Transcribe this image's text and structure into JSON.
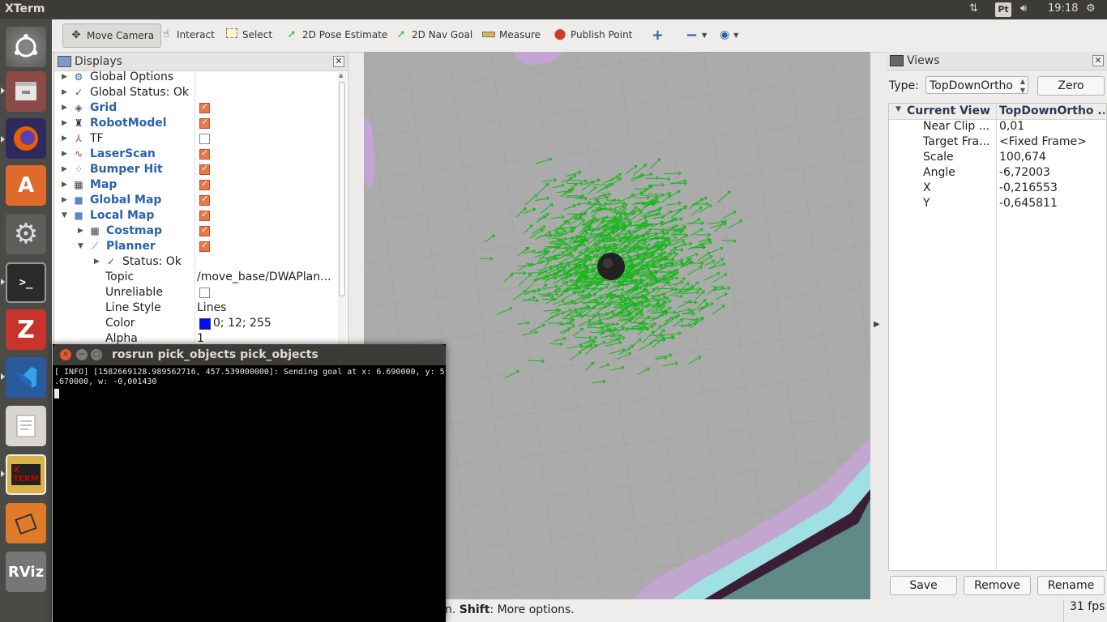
{
  "topbar": {
    "title": "XTerm",
    "keyboard_layout": "Pt",
    "time": "19:18"
  },
  "launcher": {
    "items": [
      "ubuntu-dash-icon",
      "files-icon",
      "firefox-icon",
      "software-center-icon",
      "system-settings-icon",
      "terminal-icon",
      "zotero-icon",
      "vscode-icon",
      "text-editor-icon",
      "xterm-icon",
      "blender-icon",
      "rviz-icon"
    ]
  },
  "toolbar": {
    "tools": [
      {
        "label": "Move Camera",
        "icon": "move-camera-icon"
      },
      {
        "label": "Interact",
        "icon": "hand-icon"
      },
      {
        "label": "Select",
        "icon": "select-icon"
      },
      {
        "label": "2D Pose Estimate",
        "icon": "pose-arrow-icon"
      },
      {
        "label": "2D Nav Goal",
        "icon": "nav-goal-icon"
      },
      {
        "label": "Measure",
        "icon": "ruler-icon"
      },
      {
        "label": "Publish Point",
        "icon": "pin-icon"
      }
    ]
  },
  "displays": {
    "title": "Displays",
    "rows": [
      {
        "label": "Global Options",
        "checked": null,
        "value": ""
      },
      {
        "label": "Global Status: Ok",
        "checked": null,
        "value": ""
      },
      {
        "label": "Grid",
        "checked": true,
        "value": ""
      },
      {
        "label": "RobotModel",
        "checked": true,
        "value": ""
      },
      {
        "label": "TF",
        "checked": false,
        "value": ""
      },
      {
        "label": "LaserScan",
        "checked": true,
        "value": ""
      },
      {
        "label": "Bumper Hit",
        "checked": true,
        "value": ""
      },
      {
        "label": "Map",
        "checked": true,
        "value": ""
      },
      {
        "label": "Global Map",
        "checked": true,
        "value": ""
      },
      {
        "label": "Local Map",
        "checked": true,
        "value": ""
      },
      {
        "label": "Costmap",
        "checked": true,
        "value": ""
      },
      {
        "label": "Planner",
        "checked": true,
        "value": ""
      },
      {
        "label": "Status: Ok",
        "checked": null,
        "value": ""
      },
      {
        "label": "Topic",
        "checked": null,
        "value": "/move_base/DWAPlan..."
      },
      {
        "label": "Unreliable",
        "checked": false,
        "value": ""
      },
      {
        "label": "Line Style",
        "checked": null,
        "value": "Lines"
      },
      {
        "label": "Color",
        "checked": null,
        "value": "0; 12; 255"
      },
      {
        "label": "Alpha",
        "checked": null,
        "value": "1"
      }
    ],
    "color_swatch": "#000cff"
  },
  "views": {
    "title": "Views",
    "type_label": "Type:",
    "type_value": "TopDownOrtho",
    "zero_label": "Zero",
    "header": [
      "Current View",
      "TopDownOrtho ..."
    ],
    "rows": [
      [
        "Near Clip ...",
        "0,01"
      ],
      [
        "Target Fra...",
        "<Fixed Frame>"
      ],
      [
        "Scale",
        "100,674"
      ],
      [
        "Angle",
        "-6,72003"
      ],
      [
        "X",
        "-0,216553"
      ],
      [
        "Y",
        "-0,645811"
      ]
    ],
    "buttons": {
      "save": "Save",
      "remove": "Remove",
      "rename": "Rename"
    }
  },
  "statusbar": {
    "hint_bold": "Shift",
    "hint_prefix": "n. ",
    "hint_rest": ": More options.",
    "fps": "31 fps"
  },
  "xterm": {
    "title": "rosrun pick_objects pick_objects",
    "output": "[ INFO] [1582669128.989562716, 457.539000000]: Sending goal at x: 6.690000, y: 5\n.670000, w: -0,001430"
  },
  "colors": {
    "arrows": "#17b81a",
    "accent_checkbox": "#e9774a",
    "panel_bg": "#3c3b37"
  }
}
